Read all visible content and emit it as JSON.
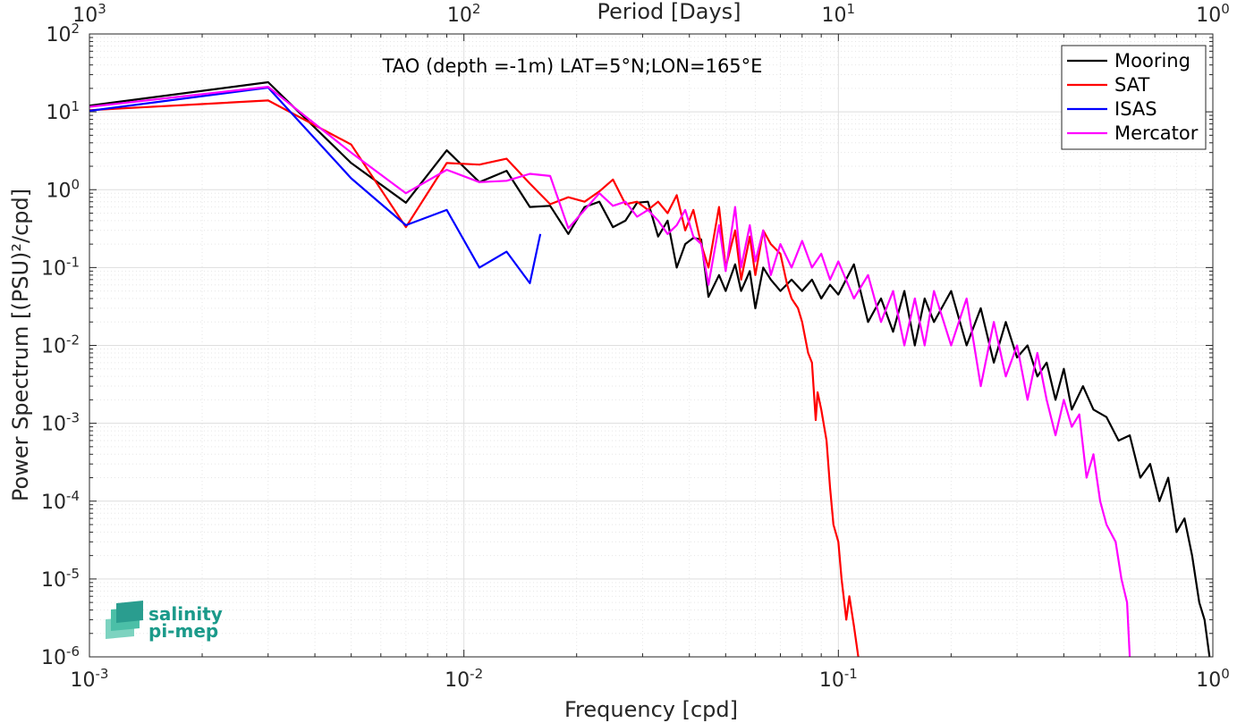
{
  "chart_data": {
    "type": "line",
    "title": "TAO (depth =-1m) LAT=5°N;LON=165°E",
    "xlabel": "Frequency [cpd]",
    "ylabel": "Power Spectrum [(PSU)²/cpd]",
    "top_xlabel": "Period [Days]",
    "xscale": "log",
    "yscale": "log",
    "xlim": [
      0.001,
      1
    ],
    "ylim": [
      1e-06,
      100
    ],
    "grid": true,
    "legend_position": "top-right",
    "x_ticks": [
      {
        "value": 0.001,
        "base": "10",
        "exp": "-3"
      },
      {
        "value": 0.01,
        "base": "10",
        "exp": "-2"
      },
      {
        "value": 0.1,
        "base": "10",
        "exp": "-1"
      },
      {
        "value": 1,
        "base": "10",
        "exp": "0"
      }
    ],
    "top_ticks": [
      {
        "value": 0.001,
        "base": "10",
        "exp": "3"
      },
      {
        "value": 0.01,
        "base": "10",
        "exp": "2"
      },
      {
        "value": 0.1,
        "base": "10",
        "exp": "1"
      },
      {
        "value": 1,
        "base": "10",
        "exp": "0"
      }
    ],
    "y_ticks": [
      {
        "value": 100,
        "base": "10",
        "exp": "2"
      },
      {
        "value": 10,
        "base": "10",
        "exp": "1"
      },
      {
        "value": 1,
        "base": "10",
        "exp": "0"
      },
      {
        "value": 0.1,
        "base": "10",
        "exp": "-1"
      },
      {
        "value": 0.01,
        "base": "10",
        "exp": "-2"
      },
      {
        "value": 0.001,
        "base": "10",
        "exp": "-3"
      },
      {
        "value": 0.0001,
        "base": "10",
        "exp": "-4"
      },
      {
        "value": 1e-05,
        "base": "10",
        "exp": "-5"
      },
      {
        "value": 1e-06,
        "base": "10",
        "exp": "-6"
      }
    ],
    "series": [
      {
        "name": "Mooring",
        "color": "#000000",
        "points": [
          [
            0.001,
            12
          ],
          [
            0.003,
            24
          ],
          [
            0.005,
            2.2
          ],
          [
            0.007,
            0.68
          ],
          [
            0.009,
            3.2
          ],
          [
            0.011,
            1.25
          ],
          [
            0.013,
            1.75
          ],
          [
            0.015,
            0.6
          ],
          [
            0.017,
            0.62
          ],
          [
            0.019,
            0.27
          ],
          [
            0.021,
            0.6
          ],
          [
            0.023,
            0.7
          ],
          [
            0.025,
            0.33
          ],
          [
            0.027,
            0.4
          ],
          [
            0.029,
            0.68
          ],
          [
            0.031,
            0.7
          ],
          [
            0.033,
            0.25
          ],
          [
            0.035,
            0.4
          ],
          [
            0.037,
            0.1
          ],
          [
            0.039,
            0.2
          ],
          [
            0.041,
            0.24
          ],
          [
            0.043,
            0.23
          ],
          [
            0.045,
            0.042
          ],
          [
            0.048,
            0.08
          ],
          [
            0.05,
            0.05
          ],
          [
            0.053,
            0.11
          ],
          [
            0.055,
            0.05
          ],
          [
            0.058,
            0.09
          ],
          [
            0.06,
            0.03
          ],
          [
            0.063,
            0.1
          ],
          [
            0.066,
            0.07
          ],
          [
            0.07,
            0.05
          ],
          [
            0.075,
            0.07
          ],
          [
            0.08,
            0.05
          ],
          [
            0.085,
            0.07
          ],
          [
            0.09,
            0.04
          ],
          [
            0.095,
            0.06
          ],
          [
            0.1,
            0.045
          ],
          [
            0.11,
            0.11
          ],
          [
            0.12,
            0.02
          ],
          [
            0.13,
            0.04
          ],
          [
            0.14,
            0.015
          ],
          [
            0.15,
            0.05
          ],
          [
            0.16,
            0.01
          ],
          [
            0.17,
            0.04
          ],
          [
            0.18,
            0.02
          ],
          [
            0.2,
            0.05
          ],
          [
            0.22,
            0.01
          ],
          [
            0.24,
            0.03
          ],
          [
            0.26,
            0.006
          ],
          [
            0.28,
            0.02
          ],
          [
            0.3,
            0.007
          ],
          [
            0.32,
            0.01
          ],
          [
            0.34,
            0.004
          ],
          [
            0.36,
            0.006
          ],
          [
            0.38,
            0.002
          ],
          [
            0.4,
            0.005
          ],
          [
            0.42,
            0.0015
          ],
          [
            0.45,
            0.003
          ],
          [
            0.48,
            0.0015
          ],
          [
            0.52,
            0.0012
          ],
          [
            0.56,
            0.0006
          ],
          [
            0.6,
            0.0007
          ],
          [
            0.64,
            0.0002
          ],
          [
            0.68,
            0.0003
          ],
          [
            0.72,
            0.0001
          ],
          [
            0.76,
            0.0002
          ],
          [
            0.8,
            4e-05
          ],
          [
            0.84,
            6e-05
          ],
          [
            0.88,
            2e-05
          ],
          [
            0.92,
            5e-06
          ],
          [
            0.95,
            3e-06
          ],
          [
            0.98,
            1e-06
          ]
        ]
      },
      {
        "name": "SAT",
        "color": "#ff0000",
        "points": [
          [
            0.001,
            10.5
          ],
          [
            0.003,
            14
          ],
          [
            0.005,
            3.8
          ],
          [
            0.007,
            0.33
          ],
          [
            0.009,
            2.2
          ],
          [
            0.011,
            2.1
          ],
          [
            0.013,
            2.5
          ],
          [
            0.015,
            1.2
          ],
          [
            0.017,
            0.65
          ],
          [
            0.019,
            0.8
          ],
          [
            0.021,
            0.7
          ],
          [
            0.023,
            0.95
          ],
          [
            0.025,
            1.35
          ],
          [
            0.027,
            0.65
          ],
          [
            0.029,
            0.7
          ],
          [
            0.031,
            0.55
          ],
          [
            0.033,
            0.7
          ],
          [
            0.035,
            0.5
          ],
          [
            0.037,
            0.85
          ],
          [
            0.039,
            0.3
          ],
          [
            0.041,
            0.55
          ],
          [
            0.043,
            0.2
          ],
          [
            0.045,
            0.1
          ],
          [
            0.048,
            0.6
          ],
          [
            0.05,
            0.1
          ],
          [
            0.053,
            0.3
          ],
          [
            0.055,
            0.07
          ],
          [
            0.058,
            0.25
          ],
          [
            0.06,
            0.08
          ],
          [
            0.063,
            0.3
          ],
          [
            0.066,
            0.2
          ],
          [
            0.07,
            0.15
          ],
          [
            0.073,
            0.06
          ],
          [
            0.075,
            0.04
          ],
          [
            0.078,
            0.03
          ],
          [
            0.08,
            0.02
          ],
          [
            0.083,
            0.008
          ],
          [
            0.085,
            0.006
          ],
          [
            0.087,
            0.0011
          ],
          [
            0.088,
            0.0025
          ],
          [
            0.09,
            0.0015
          ],
          [
            0.093,
            0.0006
          ],
          [
            0.095,
            0.00015
          ],
          [
            0.097,
            5e-05
          ],
          [
            0.1,
            3e-05
          ],
          [
            0.102,
            1e-05
          ],
          [
            0.105,
            3e-06
          ],
          [
            0.107,
            6e-06
          ],
          [
            0.11,
            2.5e-06
          ],
          [
            0.113,
            1e-06
          ]
        ]
      },
      {
        "name": "ISAS",
        "color": "#0000ff",
        "points": [
          [
            0.001,
            10.3
          ],
          [
            0.003,
            20.5
          ],
          [
            0.005,
            1.4
          ],
          [
            0.007,
            0.35
          ],
          [
            0.009,
            0.55
          ],
          [
            0.011,
            0.1
          ],
          [
            0.013,
            0.16
          ],
          [
            0.015,
            0.063
          ],
          [
            0.016,
            0.27
          ]
        ]
      },
      {
        "name": "Mercator",
        "color": "#ff00ff",
        "points": [
          [
            0.001,
            11.6
          ],
          [
            0.003,
            21
          ],
          [
            0.005,
            3.0
          ],
          [
            0.007,
            0.9
          ],
          [
            0.009,
            1.8
          ],
          [
            0.011,
            1.25
          ],
          [
            0.013,
            1.3
          ],
          [
            0.015,
            1.6
          ],
          [
            0.017,
            1.5
          ],
          [
            0.019,
            0.32
          ],
          [
            0.021,
            0.55
          ],
          [
            0.023,
            0.9
          ],
          [
            0.025,
            0.62
          ],
          [
            0.027,
            0.7
          ],
          [
            0.029,
            0.45
          ],
          [
            0.031,
            0.55
          ],
          [
            0.033,
            0.4
          ],
          [
            0.035,
            0.27
          ],
          [
            0.037,
            0.35
          ],
          [
            0.039,
            0.55
          ],
          [
            0.041,
            0.25
          ],
          [
            0.043,
            0.2
          ],
          [
            0.045,
            0.06
          ],
          [
            0.048,
            0.35
          ],
          [
            0.05,
            0.09
          ],
          [
            0.053,
            0.6
          ],
          [
            0.055,
            0.1
          ],
          [
            0.058,
            0.35
          ],
          [
            0.06,
            0.12
          ],
          [
            0.063,
            0.3
          ],
          [
            0.066,
            0.08
          ],
          [
            0.07,
            0.2
          ],
          [
            0.075,
            0.1
          ],
          [
            0.08,
            0.22
          ],
          [
            0.085,
            0.1
          ],
          [
            0.09,
            0.15
          ],
          [
            0.095,
            0.07
          ],
          [
            0.1,
            0.12
          ],
          [
            0.11,
            0.04
          ],
          [
            0.12,
            0.08
          ],
          [
            0.13,
            0.02
          ],
          [
            0.14,
            0.05
          ],
          [
            0.15,
            0.01
          ],
          [
            0.16,
            0.04
          ],
          [
            0.17,
            0.01
          ],
          [
            0.18,
            0.05
          ],
          [
            0.2,
            0.01
          ],
          [
            0.22,
            0.04
          ],
          [
            0.24,
            0.003
          ],
          [
            0.26,
            0.02
          ],
          [
            0.28,
            0.004
          ],
          [
            0.3,
            0.01
          ],
          [
            0.32,
            0.002
          ],
          [
            0.34,
            0.008
          ],
          [
            0.36,
            0.002
          ],
          [
            0.38,
            0.0007
          ],
          [
            0.4,
            0.002
          ],
          [
            0.42,
            0.0009
          ],
          [
            0.44,
            0.0013
          ],
          [
            0.46,
            0.0002
          ],
          [
            0.48,
            0.0004
          ],
          [
            0.5,
            0.0001
          ],
          [
            0.52,
            5e-05
          ],
          [
            0.55,
            3e-05
          ],
          [
            0.57,
            1e-05
          ],
          [
            0.59,
            5e-06
          ],
          [
            0.6,
            1e-06
          ]
        ]
      }
    ]
  }
}
